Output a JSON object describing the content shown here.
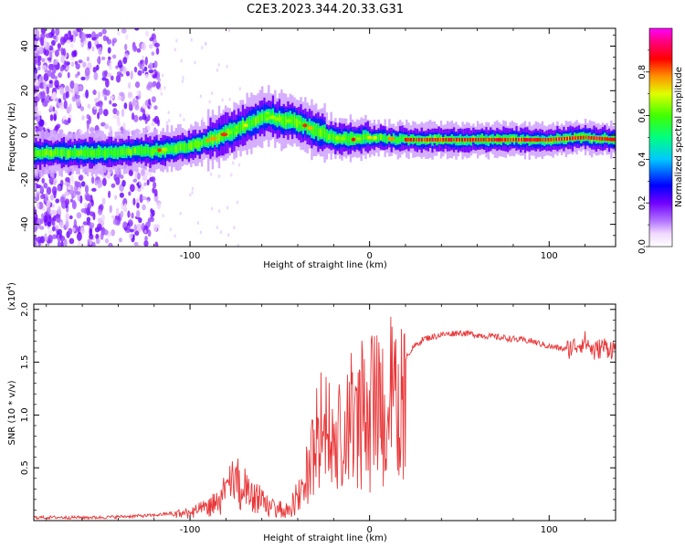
{
  "figure": {
    "title": "C2E3.2023.344.20.33.G31"
  },
  "chart_data": [
    {
      "type": "heatmap",
      "xlabel": "Height of straight line (km)",
      "ylabel": "Frequency (Hz)",
      "xlim": [
        -187,
        137
      ],
      "ylim": [
        -50,
        48
      ],
      "x_ticks": [
        -100,
        0,
        100
      ],
      "y_ticks": [
        -40,
        -20,
        0,
        20,
        40
      ],
      "colorbar": {
        "label": "Normalized spectral amplitude",
        "range": [
          0,
          1
        ],
        "ticks": [
          0.0,
          0.2,
          0.4,
          0.6,
          0.8
        ],
        "colormap": [
          "#ffffff",
          "#e0c0ff",
          "#8a2be2",
          "#0000ff",
          "#00ffff",
          "#00ff00",
          "#ffff00",
          "#ff8000",
          "#ff0000",
          "#ff00ff"
        ]
      },
      "ridge": {
        "description_points": [
          [
            -187,
            -8
          ],
          [
            -150,
            -8
          ],
          [
            -120,
            -7
          ],
          [
            -100,
            -5
          ],
          [
            -85,
            -1
          ],
          [
            -70,
            4
          ],
          [
            -58,
            9
          ],
          [
            -50,
            7
          ],
          [
            -40,
            6
          ],
          [
            -30,
            2
          ],
          [
            -20,
            -1
          ],
          [
            -10,
            -2
          ],
          [
            0,
            -1
          ],
          [
            20,
            -2
          ],
          [
            60,
            -2
          ],
          [
            90,
            -2
          ],
          [
            100,
            -2
          ],
          [
            120,
            -1
          ],
          [
            137,
            -2
          ]
        ]
      }
    },
    {
      "type": "line",
      "xlabel": "Height of straight line (km)",
      "ylabel": "SNR (10 * v/v)",
      "y_multiplier_label": "(x10",
      "y_multiplier_exp": "4",
      "xlim": [
        -187,
        137
      ],
      "ylim": [
        0,
        2.05
      ],
      "x_ticks": [
        -100,
        0,
        100
      ],
      "y_ticks": [
        0.5,
        1.0,
        1.5,
        2.0
      ],
      "series_color": "#e8383a",
      "envelope": [
        [
          -187,
          0.03
        ],
        [
          -150,
          0.03
        ],
        [
          -120,
          0.05
        ],
        [
          -105,
          0.08
        ],
        [
          -95,
          0.12
        ],
        [
          -85,
          0.2
        ],
        [
          -75,
          0.45
        ],
        [
          -65,
          0.3
        ],
        [
          -55,
          0.15
        ],
        [
          -45,
          0.12
        ],
        [
          -38,
          0.35
        ],
        [
          -30,
          0.9
        ],
        [
          -25,
          1.1
        ],
        [
          -20,
          0.8
        ],
        [
          -15,
          1.0
        ],
        [
          -10,
          1.15
        ],
        [
          -5,
          1.3
        ],
        [
          0,
          1.2
        ],
        [
          5,
          1.4
        ],
        [
          10,
          1.35
        ],
        [
          15,
          1.45
        ],
        [
          20,
          1.55
        ],
        [
          25,
          1.65
        ],
        [
          30,
          1.72
        ],
        [
          40,
          1.76
        ],
        [
          50,
          1.78
        ],
        [
          60,
          1.76
        ],
        [
          70,
          1.74
        ],
        [
          80,
          1.72
        ],
        [
          90,
          1.7
        ],
        [
          100,
          1.65
        ],
        [
          110,
          1.62
        ],
        [
          120,
          1.7
        ],
        [
          125,
          1.6
        ],
        [
          130,
          1.65
        ],
        [
          137,
          1.62
        ]
      ]
    }
  ]
}
